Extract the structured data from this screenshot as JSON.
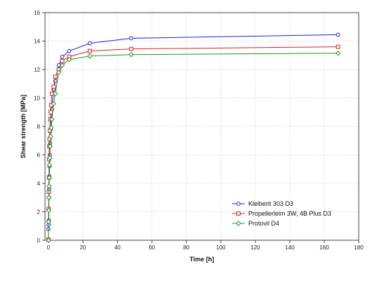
{
  "chart_data": {
    "type": "line",
    "title": "",
    "xlabel": "Time [h]",
    "ylabel": "Shear strength [MPa]",
    "xlim": [
      -2,
      180
    ],
    "ylim": [
      0,
      16
    ],
    "xticks": [
      0,
      20,
      40,
      60,
      80,
      100,
      120,
      140,
      160,
      180
    ],
    "yticks": [
      0,
      2,
      4,
      6,
      8,
      10,
      12,
      14,
      16
    ],
    "grid": true,
    "legend_position": "bottom-right",
    "series": [
      {
        "name": "Kleiberit 303 D3",
        "color": "#1f1fe6",
        "marker": "circle",
        "points": [
          [
            0,
            0.8
          ],
          [
            0.1,
            1.1
          ],
          [
            0.2,
            1.4
          ],
          [
            0.3,
            3.0
          ],
          [
            0.4,
            3.6
          ],
          [
            0.5,
            4.5
          ],
          [
            0.6,
            5.2
          ],
          [
            0.8,
            6.0
          ],
          [
            1.0,
            6.8
          ],
          [
            1.3,
            7.8
          ],
          [
            1.6,
            8.5
          ],
          [
            2.0,
            9.2
          ],
          [
            3.0,
            10.6
          ],
          [
            4.0,
            11.2
          ],
          [
            6.0,
            12.3
          ],
          [
            8.0,
            12.9
          ],
          [
            12.0,
            13.3
          ],
          [
            24.0,
            13.85
          ],
          [
            48.0,
            14.2
          ],
          [
            168.0,
            14.45
          ]
        ]
      },
      {
        "name": "Propellerleim 3W, 4B Plus D3",
        "color": "#e01f1f",
        "marker": "square",
        "points": [
          [
            0,
            0.05
          ],
          [
            0.1,
            2.2
          ],
          [
            0.2,
            3.4
          ],
          [
            0.3,
            4.4
          ],
          [
            0.4,
            5.7
          ],
          [
            0.5,
            6.6
          ],
          [
            0.6,
            7.1
          ],
          [
            0.8,
            7.7
          ],
          [
            1.0,
            8.5
          ],
          [
            1.3,
            9.0
          ],
          [
            1.6,
            9.5
          ],
          [
            2.0,
            10.3
          ],
          [
            3.0,
            10.8
          ],
          [
            4.0,
            11.5
          ],
          [
            6.0,
            12.0
          ],
          [
            8.0,
            12.6
          ],
          [
            12.0,
            12.9
          ],
          [
            24.0,
            13.3
          ],
          [
            48.0,
            13.45
          ],
          [
            168.0,
            13.6
          ]
        ]
      },
      {
        "name": "Protovil D4",
        "color": "#1a9a1a",
        "marker": "diamond",
        "points": [
          [
            0,
            0.0
          ],
          [
            0.1,
            1.3
          ],
          [
            0.2,
            2.1
          ],
          [
            0.3,
            3.0
          ],
          [
            0.4,
            3.8
          ],
          [
            0.5,
            4.4
          ],
          [
            0.6,
            5.3
          ],
          [
            0.8,
            5.8
          ],
          [
            1.0,
            6.6
          ],
          [
            1.3,
            7.3
          ],
          [
            1.6,
            7.9
          ],
          [
            2.0,
            8.5
          ],
          [
            3.0,
            9.6
          ],
          [
            4.0,
            10.3
          ],
          [
            6.0,
            11.8
          ],
          [
            8.0,
            12.3
          ],
          [
            12.0,
            12.7
          ],
          [
            24.0,
            12.95
          ],
          [
            48.0,
            13.05
          ],
          [
            168.0,
            13.15
          ]
        ]
      }
    ]
  }
}
